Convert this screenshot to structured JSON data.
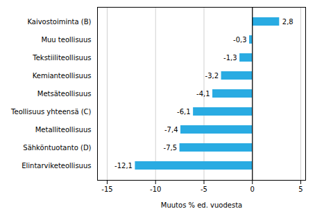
{
  "chart_data": {
    "type": "bar",
    "orientation": "horizontal",
    "categories": [
      "Elintarviketeollisuus",
      "Sähköntuotanto (D)",
      "Metalliteollisuus",
      "Teollisuus yhteensä (C)",
      "Metsäteollisuus",
      "Kemianteollisuus",
      "Tekstiiliteollisuus",
      "Muu teollisuus",
      "Kaivostoiminta (B)"
    ],
    "values": [
      -12.1,
      -7.5,
      -7.4,
      -6.1,
      -4.1,
      -3.2,
      -1.3,
      -0.3,
      2.8
    ],
    "value_labels": [
      "-12,1",
      "-7,5",
      "-7,4",
      "-6,1",
      "-4,1",
      "-3,2",
      "-1,3",
      "-0,3",
      "2,8"
    ],
    "data_labels": true,
    "color": "#29abe2",
    "xlabel": "Muutos % ed. vuodesta",
    "xlim": [
      -16,
      5.5
    ],
    "xticks": [
      -15,
      -10,
      -5,
      0,
      5
    ],
    "grid": true
  }
}
